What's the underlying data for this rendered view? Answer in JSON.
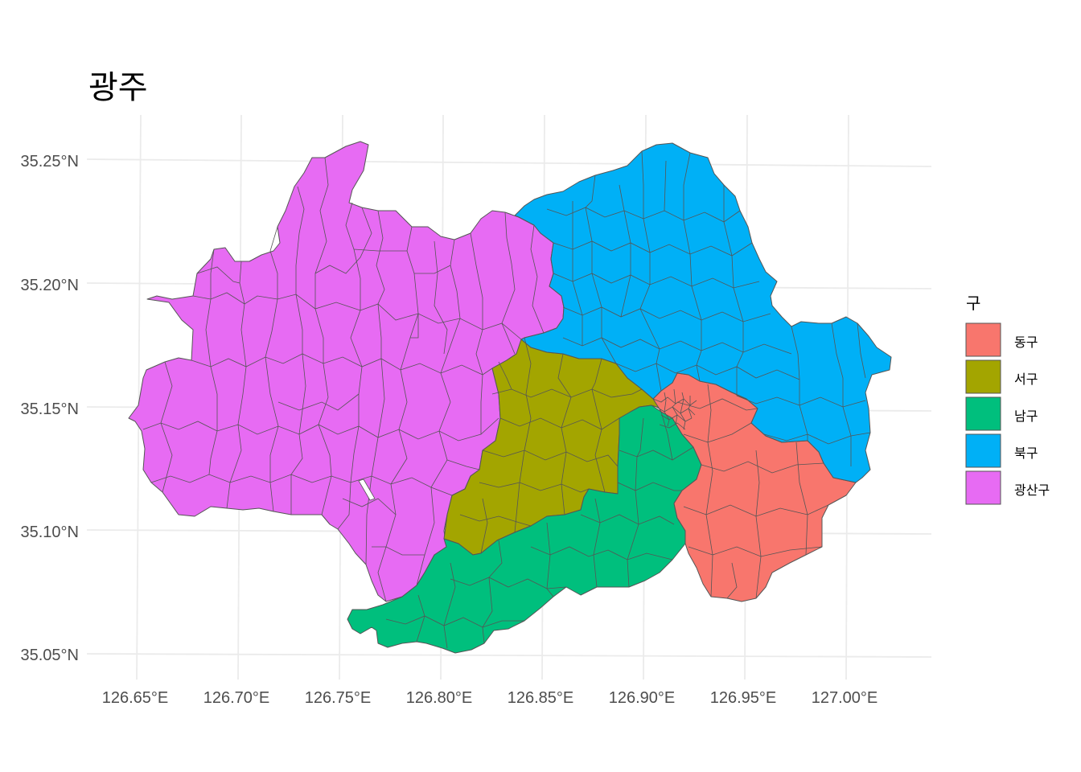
{
  "title": "광주",
  "legend": {
    "title": "구",
    "items": [
      {
        "label": "동구",
        "color": "#F8766D"
      },
      {
        "label": "서구",
        "color": "#A3A500"
      },
      {
        "label": "남구",
        "color": "#00BF7D"
      },
      {
        "label": "북구",
        "color": "#00B0F6"
      },
      {
        "label": "광산구",
        "color": "#E76BF3"
      }
    ]
  },
  "axes": {
    "x_ticks": [
      "126.65°E",
      "126.70°E",
      "126.75°E",
      "126.80°E",
      "126.85°E",
      "126.90°E",
      "126.95°E",
      "127.00°E"
    ],
    "y_ticks": [
      "35.25°N",
      "35.20°N",
      "35.15°N",
      "35.10°N",
      "35.05°N"
    ]
  },
  "style": {
    "grid_color": "#ebebeb",
    "border_color": "#555555"
  }
}
